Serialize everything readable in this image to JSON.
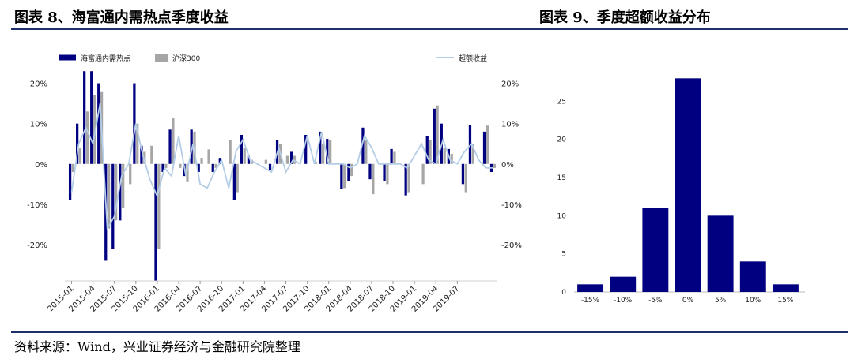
{
  "header": {
    "left_title": "图表 8、海富通内需热点季度收益",
    "right_title": "图表 9、季度超额收益分布"
  },
  "footer": {
    "source": "资料来源：Wind，兴业证券经济与金融研究院整理"
  },
  "colors": {
    "fund": "#000080",
    "index": "#a6a6a6",
    "excess": "#b4cde6",
    "rule": "#1f2f6b"
  },
  "chart_data": [
    {
      "type": "bar",
      "title": "海富通内需热点季度收益",
      "legend": [
        "海富通内需热点",
        "沪深300",
        "超额收益"
      ],
      "legend_position": "top",
      "x_tick_labels": [
        "2015-01",
        "2015-04",
        "2015-07",
        "2015-10",
        "2016-01",
        "2016-04",
        "2016-07",
        "2016-10",
        "2017-01",
        "2017-04",
        "2017-07",
        "2017-10",
        "2018-01",
        "2018-04",
        "2018-07",
        "2018-10",
        "2019-01",
        "2019-04",
        "2019-07"
      ],
      "y_tick_labels_left": [
        "20%",
        "10%",
        "0%",
        "-10%",
        "-20%"
      ],
      "y_tick_labels_right": [
        "20%",
        "10%",
        "0%",
        "-10%",
        "-20%"
      ],
      "ylim": [
        -0.29,
        0.25
      ],
      "grid": false,
      "months_start": "2015-01",
      "series": [
        {
          "name": "海富通内需热点",
          "kind": "bar",
          "values": [
            -0.09,
            0.1,
            0.23,
            0.23,
            0.2,
            -0.24,
            -0.21,
            -0.14,
            0.0,
            0.2,
            0.045,
            0.0,
            -0.29,
            -0.02,
            0.085,
            0.0,
            -0.03,
            0.085,
            -0.02,
            0.0,
            -0.02,
            0.015,
            0.0,
            -0.09,
            0.072,
            0.02,
            0.0,
            0.0,
            -0.015,
            0.06,
            0.0,
            0.03,
            0.0,
            0.072,
            0.0,
            0.08,
            0.062,
            0.0,
            -0.063,
            -0.043,
            0.0,
            0.09,
            -0.038,
            0.0,
            -0.042,
            0.037,
            0.0,
            -0.078,
            0.0,
            0.0,
            0.07,
            0.137,
            0.1,
            0.037,
            0.0,
            -0.05,
            0.097,
            0.0,
            0.08,
            -0.02
          ]
        },
        {
          "name": "沪深300",
          "kind": "bar",
          "values": [
            -0.02,
            0.04,
            0.13,
            0.17,
            0.18,
            -0.16,
            -0.14,
            -0.11,
            -0.05,
            0.1,
            0.03,
            0.045,
            -0.21,
            -0.01,
            0.115,
            -0.01,
            -0.045,
            0.08,
            0.015,
            0.036,
            -0.01,
            0.0,
            0.06,
            -0.07,
            0.04,
            0.01,
            0.0,
            0.01,
            0.0,
            0.05,
            0.02,
            0.02,
            0.0,
            0.0,
            0.005,
            0.05,
            0.06,
            0.0,
            -0.06,
            -0.03,
            0.0,
            0.06,
            -0.075,
            0.0,
            -0.05,
            0.03,
            0.0,
            -0.07,
            0.0,
            -0.05,
            0.06,
            0.145,
            0.04,
            0.025,
            0.0,
            -0.07,
            0.05,
            0.0,
            0.095,
            -0.01
          ]
        },
        {
          "name": "超额收益",
          "kind": "line",
          "axis": "right",
          "values": [
            -0.07,
            0.05,
            0.09,
            0.05,
            0.15,
            -0.16,
            -0.13,
            -0.03,
            0.0,
            0.1,
            0.02,
            -0.04,
            -0.08,
            -0.01,
            -0.03,
            0.07,
            -0.03,
            0.05,
            -0.05,
            -0.06,
            -0.02,
            0.01,
            -0.06,
            0.03,
            0.06,
            0.01,
            0.0,
            -0.01,
            -0.02,
            0.04,
            -0.02,
            0.01,
            0.0,
            0.07,
            0.0,
            0.08,
            0.0,
            0.0,
            0.0,
            -0.01,
            0.0,
            0.07,
            0.04,
            0.0,
            0.0,
            0.0,
            0.0,
            -0.01,
            0.02,
            0.05,
            0.01,
            0.0,
            0.06,
            0.01,
            0.0,
            0.03,
            0.05,
            0.01,
            -0.01,
            -0.01
          ]
        }
      ]
    },
    {
      "type": "bar",
      "title": "季度超额收益分布",
      "categories": [
        "-15%",
        "-10%",
        "-5%",
        "0%",
        "5%",
        "10%",
        "15%"
      ],
      "values": [
        1,
        2,
        11,
        28,
        10,
        4,
        1
      ],
      "y_tick_labels": [
        "0",
        "5",
        "10",
        "15",
        "20",
        "25"
      ],
      "ylim": [
        0,
        30
      ],
      "grid": false
    }
  ]
}
